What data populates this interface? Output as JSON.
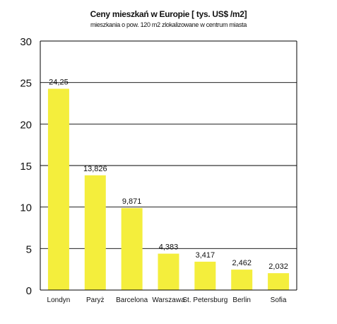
{
  "chart_data": {
    "type": "bar",
    "title": "Ceny mieszkań w Europie [ tys. US$ /m2]",
    "subtitle": "mieszkania o pow. 120 m2 zlokalizowane w centrum miasta",
    "categories": [
      "Londyn",
      "Paryż",
      "Barcelona",
      "Warszawa",
      "St. Petersburg",
      "Berlin",
      "Sofia"
    ],
    "values": [
      24.25,
      13.826,
      9.871,
      4.383,
      3.417,
      2.462,
      2.032
    ],
    "value_labels": [
      "24,25",
      "13,826",
      "9,871",
      "4,383",
      "3,417",
      "2,462",
      "2,032"
    ],
    "ylim": [
      0,
      30
    ],
    "yticks": [
      0,
      5,
      10,
      15,
      20,
      25,
      30
    ],
    "xlabel": "",
    "ylabel": "",
    "grid": true,
    "bar_color": "#f4ee3c",
    "grid_color": "#000000"
  }
}
